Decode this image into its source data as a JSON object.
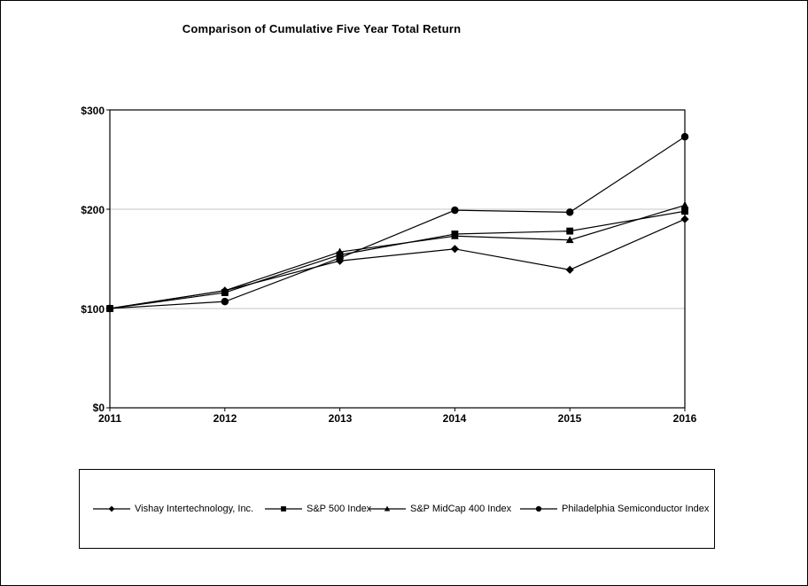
{
  "page": {
    "background": "#ffffff",
    "border_color": "#000000"
  },
  "chart_data": {
    "type": "line",
    "title": "Comparison of Cumulative Five Year Total Return",
    "x_tick_labels": [
      "2011",
      "2012",
      "2013",
      "2014",
      "2015",
      "2016"
    ],
    "y_tick_labels": [
      "$300",
      "$200",
      "$100",
      "$0"
    ],
    "ylim": [
      0,
      300
    ],
    "y_gridlines": [
      100,
      200
    ],
    "grid": "horizontal-only",
    "legend_position": "bottom-boxed",
    "line_color": "#000000",
    "gridline_color": "#c6c6c6",
    "series": [
      {
        "name": "Vishay Intertechnology, Inc.",
        "marker": "diamond",
        "values": [
          100,
          118,
          148,
          160,
          139,
          190
        ]
      },
      {
        "name": "S&P 500 Index",
        "marker": "square",
        "values": [
          100,
          116,
          154,
          175,
          178,
          198
        ]
      },
      {
        "name": "S&P MidCap 400 Index",
        "marker": "triangle",
        "values": [
          100,
          118,
          157,
          173,
          169,
          204
        ]
      },
      {
        "name": "Philadelphia Semiconductor Index",
        "marker": "circle",
        "values": [
          100,
          107,
          151,
          199,
          197,
          273
        ]
      }
    ]
  }
}
